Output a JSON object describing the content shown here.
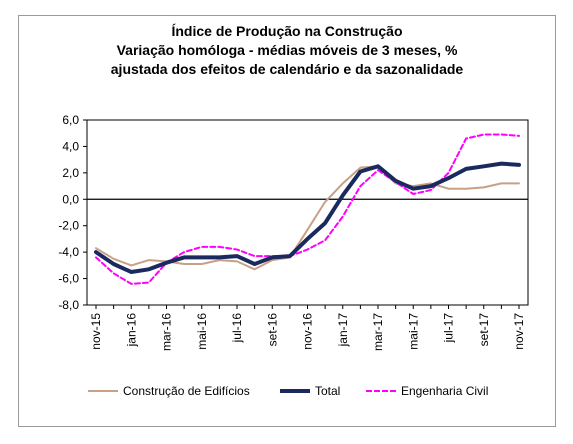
{
  "chart_data": {
    "type": "line",
    "title": [
      "Índice de Produção na Construção",
      "Variação homóloga - médias móveis de 3 meses, %",
      "ajustada dos efeitos de calendário e da sazonalidade"
    ],
    "xlabel": "",
    "ylabel": "",
    "ylim": [
      -8.0,
      6.0
    ],
    "yticks": [
      "6,0",
      "4,0",
      "2,0",
      "0,0",
      "-2,0",
      "-4,0",
      "-6,0",
      "-8,0"
    ],
    "x": [
      "nov-15",
      "dez-15",
      "jan-16",
      "fev-16",
      "mar-16",
      "abr-16",
      "mai-16",
      "jun-16",
      "jul-16",
      "ago-16",
      "set-16",
      "out-16",
      "nov-16",
      "dez-16",
      "jan-17",
      "fev-17",
      "mar-17",
      "abr-17",
      "mai-17",
      "jun-17",
      "jul-17",
      "ago-17",
      "set-17",
      "out-17",
      "nov-17"
    ],
    "xtick_labels": [
      "nov-15",
      "jan-16",
      "mar-16",
      "mai-16",
      "jul-16",
      "set-16",
      "nov-16",
      "jan-17",
      "mar-17",
      "mai-17",
      "jul-17",
      "set-17",
      "nov-17"
    ],
    "grid": false,
    "legend_position": "bottom",
    "series": [
      {
        "name": "Construção de Edifícios",
        "color": "#c8a088",
        "style": "solid",
        "values": [
          -3.7,
          -4.5,
          -5.0,
          -4.6,
          -4.7,
          -4.9,
          -4.9,
          -4.6,
          -4.7,
          -5.3,
          -4.6,
          -4.4,
          -2.3,
          -0.2,
          1.2,
          2.4,
          2.5,
          1.2,
          1.0,
          1.2,
          0.8,
          0.8,
          0.9,
          1.2,
          1.2
        ]
      },
      {
        "name": "Total",
        "color": "#1a2a5e",
        "style": "bold",
        "values": [
          -4.0,
          -4.9,
          -5.5,
          -5.3,
          -4.8,
          -4.4,
          -4.4,
          -4.4,
          -4.3,
          -4.9,
          -4.4,
          -4.3,
          -3.0,
          -1.8,
          0.3,
          2.1,
          2.5,
          1.4,
          0.8,
          1.0,
          1.6,
          2.3,
          2.5,
          2.7,
          2.6
        ]
      },
      {
        "name": "Engenharia Civil",
        "color": "#ff00ff",
        "style": "dashed",
        "values": [
          -4.4,
          -5.6,
          -6.4,
          -6.3,
          -4.8,
          -4.0,
          -3.6,
          -3.6,
          -3.8,
          -4.3,
          -4.3,
          -4.3,
          -3.8,
          -3.1,
          -1.3,
          1.0,
          2.2,
          1.3,
          0.4,
          0.7,
          2.0,
          4.6,
          4.9,
          4.9,
          4.8
        ]
      }
    ]
  }
}
